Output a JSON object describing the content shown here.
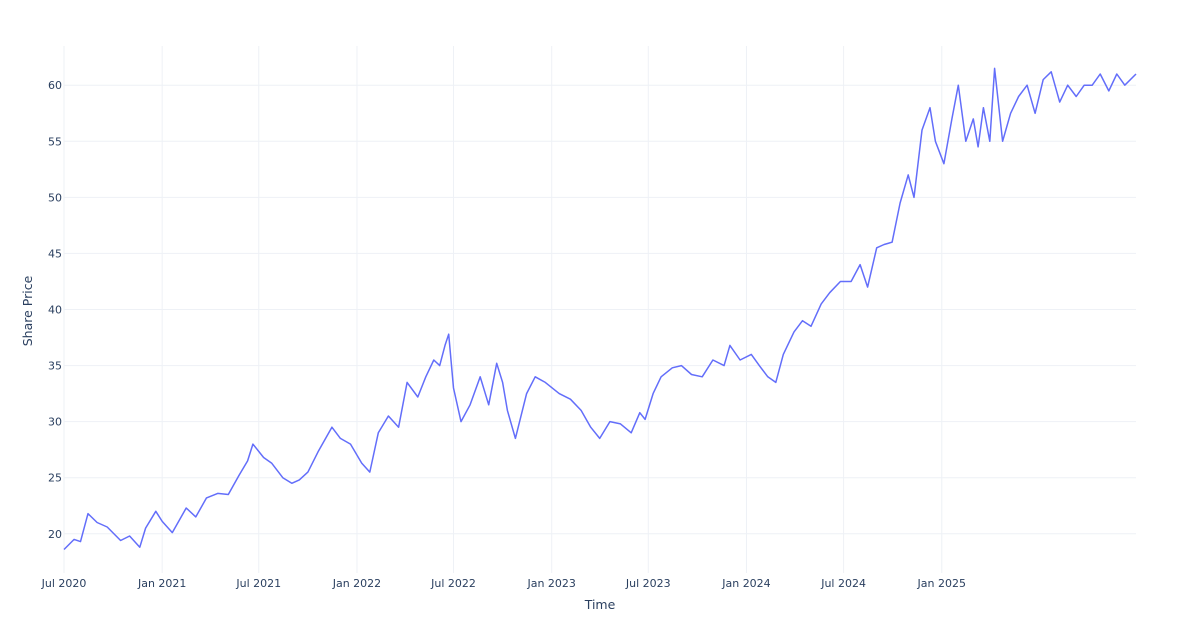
{
  "chart_data": {
    "type": "line",
    "title": "",
    "xlabel": "Time",
    "ylabel": "Share Price",
    "xlim": [
      "2020-07-01",
      "2025-12-31"
    ],
    "ylim": [
      16.5,
      63.5
    ],
    "grid": true,
    "legend": "none",
    "line_color": "#636efa",
    "x_ticks": [
      {
        "date": "2020-07-01",
        "label": "Jul 2020"
      },
      {
        "date": "2021-01-01",
        "label": "Jan 2021"
      },
      {
        "date": "2021-07-01",
        "label": "Jul 2021"
      },
      {
        "date": "2022-01-01",
        "label": "Jan 2022"
      },
      {
        "date": "2022-07-01",
        "label": "Jul 2022"
      },
      {
        "date": "2023-01-01",
        "label": "Jan 2023"
      },
      {
        "date": "2023-07-01",
        "label": "Jul 2023"
      },
      {
        "date": "2024-01-01",
        "label": "Jan 2024"
      },
      {
        "date": "2024-07-01",
        "label": "Jul 2024"
      },
      {
        "date": "2025-01-01",
        "label": "Jan 2025"
      }
    ],
    "y_ticks": [
      20,
      25,
      30,
      35,
      40,
      45,
      50,
      55,
      60
    ],
    "series": [
      {
        "x": [
          "2020-07-01",
          "2020-07-20",
          "2020-08-01",
          "2020-08-15",
          "2020-09-01",
          "2020-09-20",
          "2020-10-15",
          "2020-11-01",
          "2020-11-20",
          "2020-12-01",
          "2020-12-20",
          "2021-01-01",
          "2021-01-20",
          "2021-02-15",
          "2021-03-05",
          "2021-03-25",
          "2021-04-15",
          "2021-05-05",
          "2021-05-25",
          "2021-06-10",
          "2021-06-20",
          "2021-07-10",
          "2021-07-25",
          "2021-08-15",
          "2021-09-01",
          "2021-09-15",
          "2021-10-01",
          "2021-10-20",
          "2021-11-15",
          "2021-12-01",
          "2021-12-20",
          "2022-01-10",
          "2022-01-25",
          "2022-02-10",
          "2022-03-01",
          "2022-03-20",
          "2022-04-05",
          "2022-04-25",
          "2022-05-10",
          "2022-05-25",
          "2022-06-05",
          "2022-06-15",
          "2022-06-22",
          "2022-07-01",
          "2022-07-15",
          "2022-08-01",
          "2022-08-20",
          "2022-09-05",
          "2022-09-20",
          "2022-10-01",
          "2022-10-10",
          "2022-10-25",
          "2022-11-15",
          "2022-12-01",
          "2022-12-20",
          "2023-01-15",
          "2023-02-05",
          "2023-02-25",
          "2023-03-15",
          "2023-04-01",
          "2023-04-20",
          "2023-05-10",
          "2023-05-30",
          "2023-06-15",
          "2023-06-25",
          "2023-07-10",
          "2023-07-25",
          "2023-08-15",
          "2023-09-01",
          "2023-09-20",
          "2023-10-10",
          "2023-10-30",
          "2023-11-20",
          "2023-12-01",
          "2023-12-20",
          "2024-01-10",
          "2024-01-25",
          "2024-02-10",
          "2024-02-25",
          "2024-03-10",
          "2024-03-30",
          "2024-04-15",
          "2024-05-01",
          "2024-05-20",
          "2024-06-05",
          "2024-06-25",
          "2024-07-15",
          "2024-08-01",
          "2024-08-15",
          "2024-09-01",
          "2024-09-15",
          "2024-09-30",
          "2024-10-15",
          "2024-10-30",
          "2024-11-10",
          "2024-11-25",
          "2024-12-10",
          "2024-12-20",
          "2025-01-05",
          "2025-01-20",
          "2025-02-01",
          "2025-02-15",
          "2025-03-01",
          "2025-03-10",
          "2025-03-20",
          "2025-04-01",
          "2025-04-10",
          "2025-04-25",
          "2025-05-10",
          "2025-05-25",
          "2025-06-10",
          "2025-06-25",
          "2025-07-10",
          "2025-07-25",
          "2025-08-10",
          "2025-08-25",
          "2025-09-10",
          "2025-09-25",
          "2025-10-10",
          "2025-10-25",
          "2025-11-10",
          "2025-11-25",
          "2025-12-10",
          "2025-12-31"
        ],
        "values": [
          18.6,
          19.5,
          19.3,
          21.8,
          21.0,
          20.6,
          19.4,
          19.8,
          18.8,
          20.5,
          22.0,
          21.1,
          20.1,
          22.3,
          21.5,
          23.2,
          23.6,
          23.5,
          25.2,
          26.5,
          28.0,
          26.8,
          26.3,
          25.0,
          24.5,
          24.8,
          25.5,
          27.3,
          29.5,
          28.5,
          28.0,
          26.3,
          25.5,
          29.0,
          30.5,
          29.5,
          33.5,
          32.2,
          34.0,
          35.5,
          35.0,
          36.8,
          37.8,
          33.0,
          30.0,
          31.5,
          34.0,
          31.5,
          35.2,
          33.5,
          31.0,
          28.5,
          32.5,
          34.0,
          33.5,
          32.5,
          32.0,
          31.0,
          29.5,
          28.5,
          30.0,
          29.8,
          29.0,
          30.8,
          30.2,
          32.5,
          34.0,
          34.8,
          35.0,
          34.2,
          34.0,
          35.5,
          35.0,
          36.8,
          35.5,
          36.0,
          35.0,
          34.0,
          33.5,
          36.0,
          38.0,
          39.0,
          38.5,
          40.5,
          41.5,
          42.5,
          42.5,
          44.0,
          42.0,
          45.5,
          45.8,
          46.0,
          49.5,
          52.0,
          50.0,
          56.0,
          58.0,
          55.0,
          53.0,
          57.0,
          60.0,
          55.0,
          57.0,
          54.5,
          58.0,
          55.0,
          61.5,
          55.0,
          57.5,
          59.0,
          60.0,
          57.5,
          60.5,
          61.2,
          58.5,
          60.0,
          59.0,
          60.0,
          60.0,
          61.0,
          59.5,
          61.0,
          60.0,
          61.0
        ]
      }
    ]
  }
}
